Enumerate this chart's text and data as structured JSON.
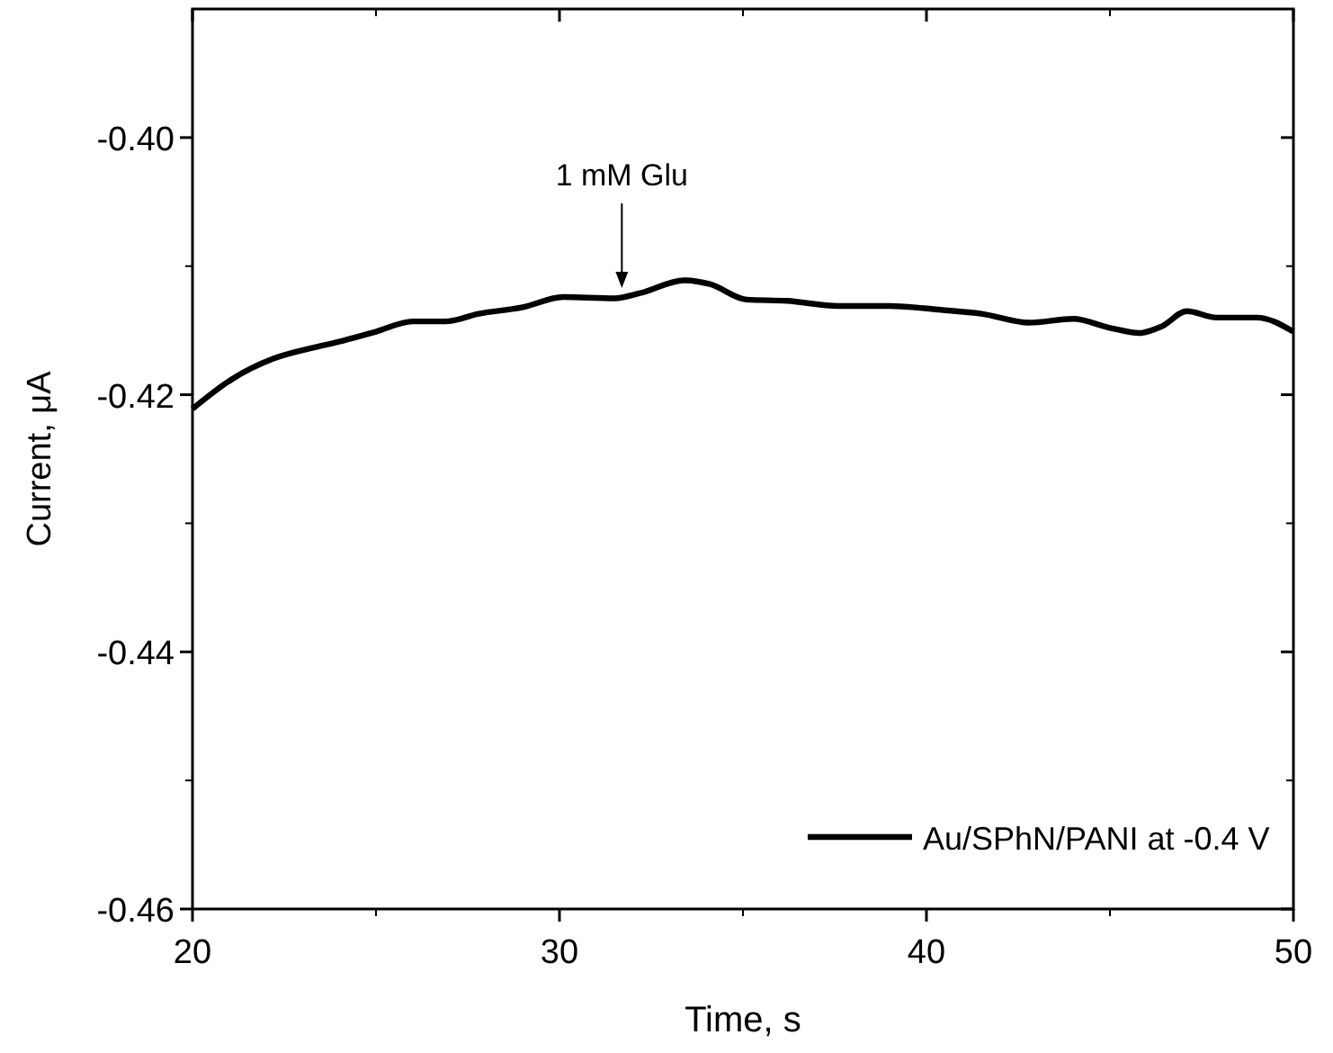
{
  "chart_data": {
    "type": "line",
    "xlabel": "Time, s",
    "ylabel": "Current, μA",
    "xlim": [
      20,
      50
    ],
    "xticks": [
      20,
      30,
      40,
      50
    ],
    "ylim": [
      -0.46,
      -0.39
    ],
    "yticks": [
      {
        "value": -0.46,
        "label": "-0.46"
      },
      {
        "value": -0.44,
        "label": "-0.44"
      },
      {
        "value": -0.42,
        "label": "-0.42"
      },
      {
        "value": -0.4,
        "label": "-0.40"
      }
    ],
    "legend": "bottom right",
    "grid": false,
    "marker": "none",
    "line_style": "solid",
    "annotations": [
      "1 mM Glu"
    ],
    "series": [
      {
        "name": "Au/SPhN/PANI at -0.4 V",
        "color": "#000000",
        "x": [
          20,
          21.07,
          22.2,
          23.2,
          24.1,
          25,
          26,
          26.9,
          27.8,
          29,
          30.1,
          31.5,
          32.2,
          33.4,
          34.1,
          35.1,
          36.2,
          37.6,
          39,
          40.4,
          41.5,
          42.8,
          44,
          45,
          45.8,
          46.4,
          47.1,
          47.9,
          49,
          50
        ],
        "values": [
          -0.4211,
          -0.4188,
          -0.4172,
          -0.4164,
          -0.4158,
          -0.4151,
          -0.4143,
          -0.4143,
          -0.4137,
          -0.4132,
          -0.4124,
          -0.4125,
          -0.4121,
          -0.4111,
          -0.4114,
          -0.4126,
          -0.4127,
          -0.4131,
          -0.4131,
          -0.4134,
          -0.4137,
          -0.4144,
          -0.4141,
          -0.4148,
          -0.4152,
          -0.4147,
          -0.4135,
          -0.414,
          -0.414,
          -0.4151
        ]
      }
    ]
  }
}
